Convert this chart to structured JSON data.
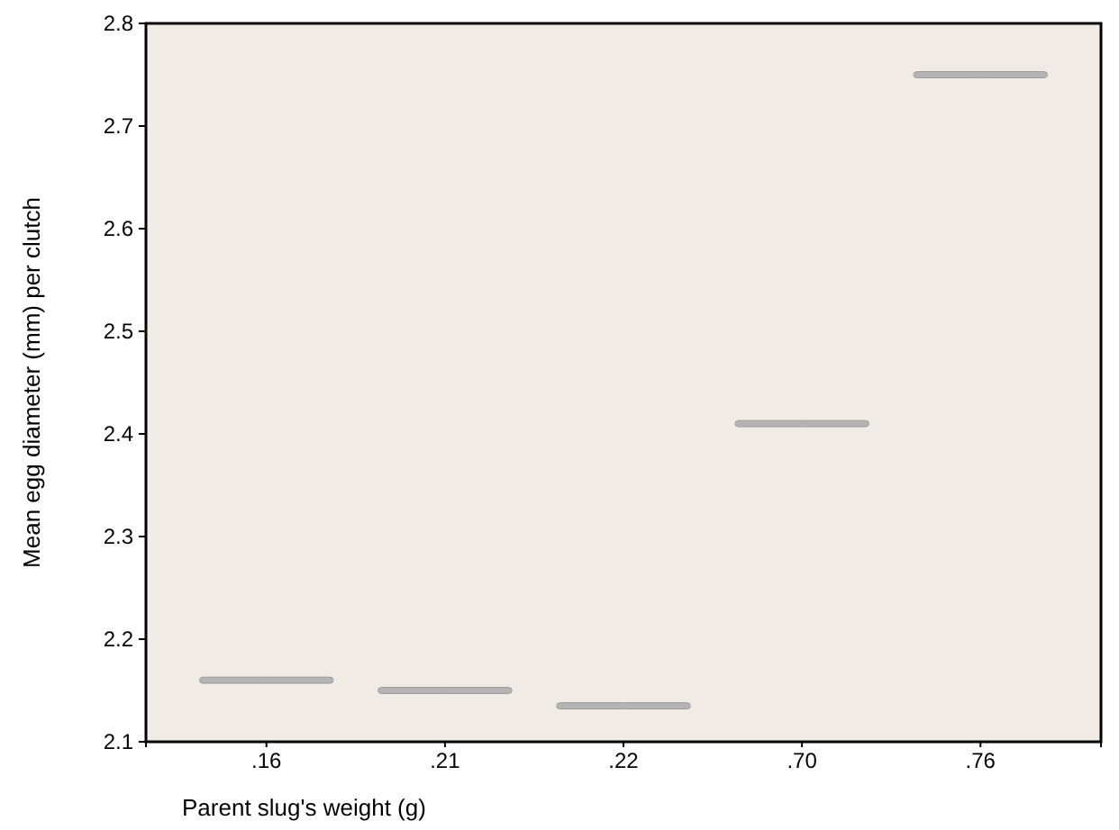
{
  "chart_data": {
    "type": "box",
    "xlabel": "Parent slug's weight (g)",
    "ylabel": "Mean egg diameter (mm) per clutch",
    "categories": [
      ".16",
      ".21",
      ".22",
      ".70",
      ".76"
    ],
    "series": [
      {
        "color": "#b4b4b4",
        "boxes": [
          {
            "low": 2.157,
            "q1": 2.157,
            "median": 2.16,
            "q3": 2.163,
            "high": 2.163
          },
          {
            "low": 2.147,
            "q1": 2.147,
            "median": 2.15,
            "q3": 2.153,
            "high": 2.153
          },
          {
            "low": 2.132,
            "q1": 2.132,
            "median": 2.135,
            "q3": 2.138,
            "high": 2.138
          },
          {
            "low": 2.407,
            "q1": 2.407,
            "median": 2.41,
            "q3": 2.413,
            "high": 2.413
          },
          {
            "low": 2.747,
            "q1": 2.747,
            "median": 2.75,
            "q3": 2.753,
            "high": 2.753
          }
        ]
      }
    ],
    "ylim": [
      2.1,
      2.8
    ],
    "yticks": [
      2.1,
      2.2,
      2.3,
      2.4,
      2.5,
      2.6,
      2.7,
      2.8
    ],
    "grid": false
  }
}
